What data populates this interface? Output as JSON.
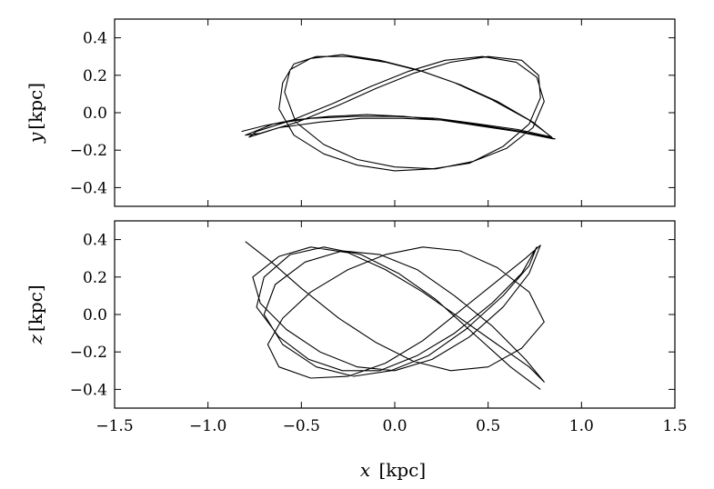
{
  "chart_data": [
    {
      "type": "line",
      "title": "",
      "xlabel": {
        "var": "x",
        "unit": "[kpc]"
      },
      "ylabel": {
        "var": "y",
        "unit": "[kpc]"
      },
      "xlim": [
        -1.5,
        1.5
      ],
      "ylim": [
        -0.5,
        0.5
      ],
      "xticks": [
        "−1.5",
        "−1.0",
        "−0.5",
        "0.0",
        "0.5",
        "1.0",
        "1.5"
      ],
      "yticks": [
        "0.4",
        "0.2",
        "0.0",
        "−0.2",
        "−0.4"
      ],
      "ytick_values": [
        0.4,
        0.2,
        0.0,
        -0.2,
        -0.4
      ],
      "show_xtick_labels": false,
      "grid": false,
      "series": [
        {
          "color": "#000000",
          "x": [
            -0.82,
            -0.7,
            -0.55,
            -0.35,
            -0.15,
            0.05,
            0.25,
            0.45,
            0.65,
            0.85,
            0.74,
            0.55,
            0.35,
            0.15,
            -0.05,
            -0.25,
            -0.42,
            -0.54,
            -0.6,
            -0.62,
            -0.54,
            -0.38,
            -0.2,
            0.0,
            0.2,
            0.4,
            0.58,
            0.72,
            0.78,
            0.77,
            0.68,
            0.5,
            0.3,
            0.1,
            -0.1,
            -0.3,
            -0.52,
            -0.72,
            -0.8,
            -0.65,
            -0.45,
            -0.22,
            0.0,
            0.22,
            0.45,
            0.66,
            0.84,
            0.72,
            0.52,
            0.32,
            0.12,
            -0.08,
            -0.28,
            -0.45,
            -0.56,
            -0.59,
            -0.53,
            -0.38,
            -0.2,
            0.0,
            0.22,
            0.42,
            0.6,
            0.74,
            0.8,
            0.76,
            0.65,
            0.47,
            0.27,
            0.07,
            -0.13,
            -0.33,
            -0.55,
            -0.74,
            -0.78,
            -0.62,
            -0.4,
            -0.18,
            0.04,
            0.26,
            0.48,
            0.68,
            0.86
          ],
          "y": [
            -0.1,
            -0.07,
            -0.04,
            -0.02,
            -0.01,
            -0.02,
            -0.04,
            -0.07,
            -0.1,
            -0.14,
            -0.05,
            0.06,
            0.15,
            0.22,
            0.27,
            0.3,
            0.3,
            0.26,
            0.16,
            0.02,
            -0.12,
            -0.22,
            -0.28,
            -0.31,
            -0.3,
            -0.27,
            -0.18,
            -0.06,
            0.08,
            0.2,
            0.28,
            0.3,
            0.27,
            0.21,
            0.13,
            0.04,
            -0.05,
            -0.11,
            -0.12,
            -0.06,
            -0.03,
            -0.02,
            -0.02,
            -0.03,
            -0.06,
            -0.09,
            -0.13,
            -0.04,
            0.07,
            0.16,
            0.23,
            0.28,
            0.31,
            0.29,
            0.23,
            0.11,
            -0.05,
            -0.17,
            -0.25,
            -0.29,
            -0.3,
            -0.26,
            -0.19,
            -0.08,
            0.06,
            0.19,
            0.27,
            0.3,
            0.28,
            0.22,
            0.14,
            0.05,
            -0.04,
            -0.1,
            -0.13,
            -0.08,
            -0.05,
            -0.03,
            -0.03,
            -0.04,
            -0.07,
            -0.1,
            -0.14
          ]
        }
      ]
    },
    {
      "type": "line",
      "title": "",
      "xlabel": {
        "var": "x",
        "unit": "[kpc]"
      },
      "ylabel": {
        "var": "z",
        "unit": "[kpc]"
      },
      "xlim": [
        -1.5,
        1.5
      ],
      "ylim": [
        -0.5,
        0.5
      ],
      "xticks": [
        "−1.5",
        "−1.0",
        "−0.5",
        "0.0",
        "0.5",
        "1.0",
        "1.5"
      ],
      "xtick_values": [
        -1.5,
        -1.0,
        -0.5,
        0.0,
        0.5,
        1.0,
        1.5
      ],
      "yticks": [
        "0.4",
        "0.2",
        "0.0",
        "−0.2",
        "−0.4"
      ],
      "ytick_values": [
        0.4,
        0.2,
        0.0,
        -0.2,
        -0.4
      ],
      "show_xtick_labels": true,
      "grid": false,
      "series": [
        {
          "color": "#000000",
          "x": [
            -0.8,
            -0.66,
            -0.5,
            -0.3,
            -0.1,
            0.1,
            0.3,
            0.5,
            0.68,
            0.8,
            0.72,
            0.55,
            0.35,
            0.15,
            -0.05,
            -0.25,
            -0.45,
            -0.6,
            -0.68,
            -0.62,
            -0.45,
            -0.25,
            -0.05,
            0.15,
            0.35,
            0.55,
            0.7,
            0.78,
            0.72,
            0.58,
            0.4,
            0.2,
            0.0,
            -0.2,
            -0.4,
            -0.58,
            -0.72,
            -0.76,
            -0.62,
            -0.45,
            -0.25,
            -0.05,
            0.15,
            0.35,
            0.55,
            0.72,
            0.8,
            0.7,
            0.52,
            0.32,
            0.12,
            -0.08,
            -0.28,
            -0.48,
            -0.64,
            -0.7,
            -0.6,
            -0.42,
            -0.22,
            -0.02,
            0.18,
            0.38,
            0.58,
            0.72,
            0.76,
            0.68,
            0.52,
            0.32,
            0.12,
            -0.08,
            -0.28,
            -0.46,
            -0.62,
            -0.74,
            -0.7,
            -0.56,
            -0.38,
            -0.18,
            0.02,
            0.22,
            0.42,
            0.62,
            0.78
          ],
          "z": [
            0.39,
            0.28,
            0.14,
            -0.02,
            -0.15,
            -0.25,
            -0.3,
            -0.28,
            -0.18,
            -0.04,
            0.12,
            0.25,
            0.34,
            0.36,
            0.32,
            0.24,
            0.12,
            -0.02,
            -0.16,
            -0.28,
            -0.34,
            -0.33,
            -0.26,
            -0.14,
            0.02,
            0.18,
            0.3,
            0.37,
            0.22,
            0.04,
            -0.12,
            -0.24,
            -0.3,
            -0.28,
            -0.2,
            -0.08,
            0.06,
            0.2,
            0.31,
            0.36,
            0.33,
            0.24,
            0.12,
            -0.02,
            -0.16,
            -0.28,
            -0.36,
            -0.24,
            -0.06,
            0.1,
            0.24,
            0.32,
            0.34,
            0.28,
            0.16,
            0.0,
            -0.16,
            -0.28,
            -0.33,
            -0.3,
            -0.22,
            -0.08,
            0.1,
            0.26,
            0.36,
            0.22,
            0.06,
            -0.1,
            -0.22,
            -0.3,
            -0.3,
            -0.24,
            -0.12,
            0.04,
            0.2,
            0.32,
            0.36,
            0.32,
            0.22,
            0.08,
            -0.1,
            -0.28,
            -0.4
          ]
        }
      ]
    }
  ]
}
